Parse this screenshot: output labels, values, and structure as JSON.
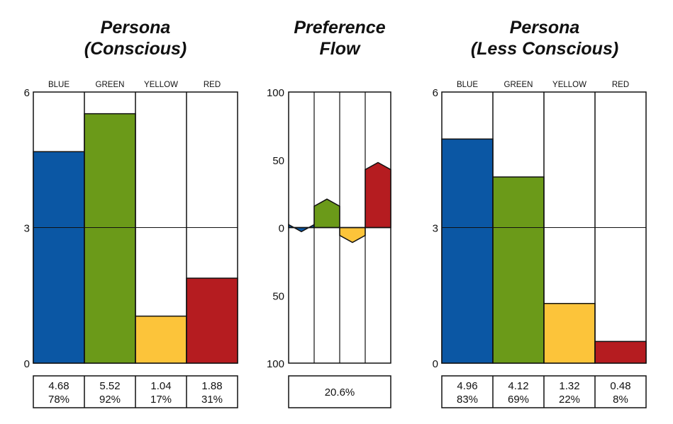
{
  "chart_data": [
    {
      "type": "bar",
      "title": [
        "Persona",
        "(Conscious)"
      ],
      "categories": [
        "BLUE",
        "GREEN",
        "YELLOW",
        "RED"
      ],
      "values": [
        4.68,
        5.52,
        1.04,
        1.88
      ],
      "percents": [
        "78%",
        "92%",
        "17%",
        "31%"
      ],
      "value_labels": [
        "4.68",
        "5.52",
        "1.04",
        "1.88"
      ],
      "yticks": [
        "0",
        "3",
        "6"
      ],
      "ylim": [
        0,
        6
      ],
      "colors": [
        "#0b57a4",
        "#6b9a19",
        "#fcc43a",
        "#b51c20"
      ]
    },
    {
      "type": "bar",
      "title": [
        "Preference",
        "Flow"
      ],
      "categories": [
        "BLUE",
        "GREEN",
        "YELLOW",
        "RED"
      ],
      "values": [
        -3,
        21,
        -11,
        48
      ],
      "yticks": [
        "100",
        "50",
        "0",
        "50",
        "100"
      ],
      "ylim": [
        -100,
        100
      ],
      "summary": "20.6%",
      "colors": [
        "#0b57a4",
        "#6b9a19",
        "#fcc43a",
        "#b51c20"
      ]
    },
    {
      "type": "bar",
      "title": [
        "Persona",
        "(Less Conscious)"
      ],
      "categories": [
        "BLUE",
        "GREEN",
        "YELLOW",
        "RED"
      ],
      "values": [
        4.96,
        4.12,
        1.32,
        0.48
      ],
      "percents": [
        "83%",
        "69%",
        "22%",
        "8%"
      ],
      "value_labels": [
        "4.96",
        "4.12",
        "1.32",
        "0.48"
      ],
      "yticks": [
        "0",
        "3",
        "6"
      ],
      "ylim": [
        0,
        6
      ],
      "colors": [
        "#0b57a4",
        "#6b9a19",
        "#fcc43a",
        "#b51c20"
      ]
    }
  ]
}
